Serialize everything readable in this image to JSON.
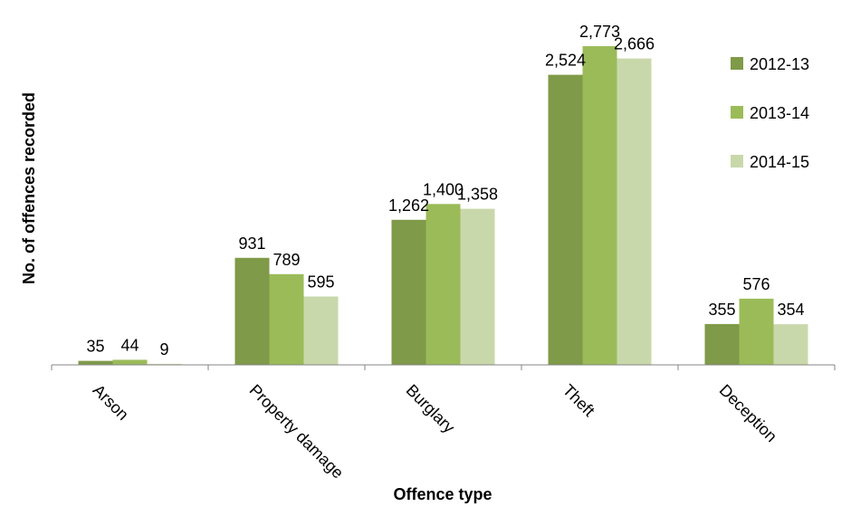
{
  "chart_data": {
    "type": "bar",
    "xlabel": "Offence type",
    "ylabel": "No. of offences recorded",
    "categories": [
      "Arson",
      "Property damage",
      "Burglary",
      "Theft",
      "Deception"
    ],
    "series": [
      {
        "name": "2012-13",
        "color": "#7f9a48",
        "values": [
          35,
          931,
          1262,
          2524,
          355
        ]
      },
      {
        "name": "2013-14",
        "color": "#9bbb59",
        "values": [
          44,
          789,
          1400,
          2773,
          576
        ]
      },
      {
        "name": "2014-15",
        "color": "#c9d8ab",
        "values": [
          9,
          595,
          1358,
          2666,
          354
        ]
      }
    ],
    "data_labels": [
      [
        "35",
        "931",
        "1,262",
        "2,524",
        "355"
      ],
      [
        "44",
        "789",
        "1,400",
        "2,773",
        "576"
      ],
      [
        "9",
        "595",
        "1,358",
        "2,666",
        "354"
      ]
    ],
    "ylim": [
      0,
      2773
    ],
    "grid": false,
    "legend_position": "right"
  }
}
